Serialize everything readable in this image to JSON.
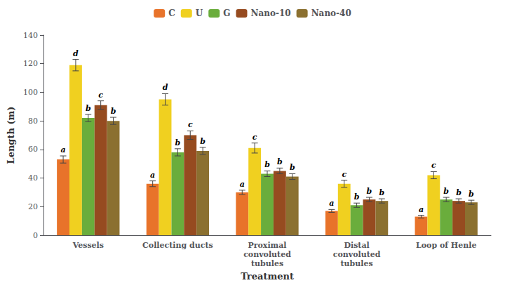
{
  "chart_data": {
    "type": "bar",
    "categories": [
      "Vessels",
      "Collecting ducts",
      "Proximal\nconvoluted\ntubules",
      "Distal\nconvoluted\ntubules",
      "Loop of Henle"
    ],
    "series": [
      {
        "name": "C",
        "color": "#E8732A",
        "values": [
          53,
          36,
          30,
          17,
          13
        ],
        "errors": [
          2.5,
          2.0,
          1.5,
          1.0,
          1.0
        ],
        "letters": [
          "a",
          "a",
          "a",
          "a",
          "a"
        ]
      },
      {
        "name": "U",
        "color": "#F0D020",
        "values": [
          119,
          95,
          61,
          36,
          42
        ],
        "errors": [
          4.0,
          4.0,
          3.5,
          2.5,
          2.5
        ],
        "letters": [
          "d",
          "d",
          "c",
          "c",
          "c"
        ]
      },
      {
        "name": "G",
        "color": "#6AAD3C",
        "values": [
          82,
          58,
          43,
          21,
          25
        ],
        "errors": [
          2.5,
          2.5,
          2.0,
          1.5,
          1.5
        ],
        "letters": [
          "b",
          "b",
          "b",
          "b",
          "b"
        ]
      },
      {
        "name": "Nano-10",
        "color": "#964B20",
        "values": [
          91,
          70,
          45,
          25,
          24
        ],
        "errors": [
          3.0,
          3.0,
          2.0,
          1.5,
          1.5
        ],
        "letters": [
          "c",
          "c",
          "b",
          "b",
          "b"
        ]
      },
      {
        "name": "Nano-40",
        "color": "#8B7030",
        "values": [
          80,
          59,
          41,
          24,
          23
        ],
        "errors": [
          2.5,
          2.5,
          2.0,
          1.5,
          1.5
        ],
        "letters": [
          "b",
          "b",
          "b",
          "b",
          "b"
        ]
      }
    ],
    "xlabel": "Treatment",
    "ylabel": "Length (m)",
    "ylim": [
      0,
      140
    ],
    "yticks": [
      0,
      20,
      40,
      60,
      80,
      100,
      120,
      140
    ],
    "grid": false,
    "legend": "top"
  }
}
